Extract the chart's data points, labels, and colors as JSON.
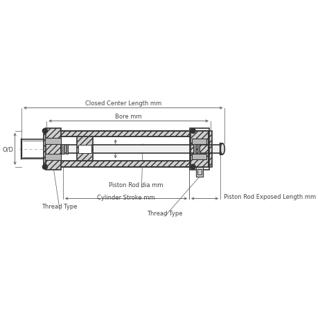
{
  "bg_color": "#ffffff",
  "line_color": "#333333",
  "dim_color": "#555555",
  "text_color": "#444444",
  "fig_width": 4.6,
  "fig_height": 4.6,
  "labels": {
    "thread_type_left": "Thread Type",
    "thread_type_right": "Thread Type",
    "cylinder_stroke": "Cylinder Stroke mm",
    "piston_rod_dia": "Piston Rod dia mm",
    "piston_rod_exposed": "Piston Rod Exposed Length mm",
    "od": "O/D",
    "bore": "Bore mm",
    "closed_center": "Closed Center Length mm"
  }
}
